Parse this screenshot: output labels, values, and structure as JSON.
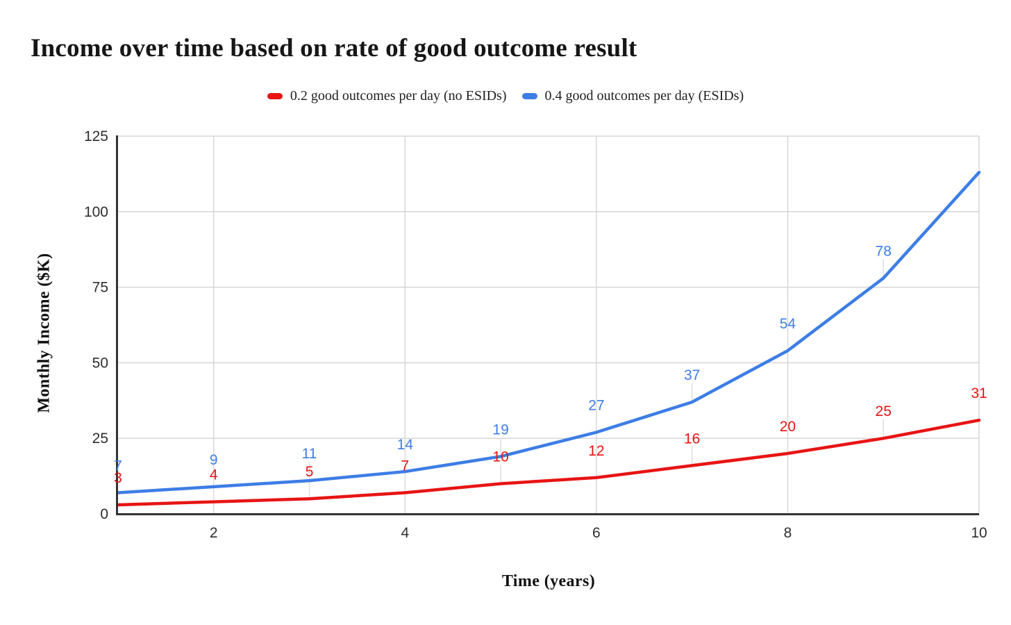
{
  "title": "Income over time based on rate of good outcome result",
  "legend": {
    "items": [
      {
        "label": "0.2 good outcomes per day (no ESIDs)",
        "color": "#e81414"
      },
      {
        "label": "0.4 good outcomes per day (ESIDs)",
        "color": "#3d7de6"
      }
    ]
  },
  "chart_data": {
    "type": "line",
    "title": "Income over time based on rate of good outcome result",
    "xlabel": "Time (years)",
    "ylabel": "Monthly Income ($K)",
    "x": [
      1,
      2,
      3,
      4,
      5,
      6,
      7,
      8,
      9,
      10
    ],
    "xticks": [
      2,
      4,
      6,
      8,
      10
    ],
    "yticks": [
      0,
      25,
      50,
      75,
      100,
      125
    ],
    "xlim": [
      1,
      10
    ],
    "ylim": [
      0,
      125
    ],
    "grid": true,
    "legend_position": "top-center",
    "series": [
      {
        "name": "0.2 good outcomes per day (no ESIDs)",
        "color": "#e81414",
        "values": [
          3,
          4,
          5,
          7,
          10,
          12,
          16,
          20,
          25,
          31
        ],
        "point_labels": [
          "3",
          "4",
          "5",
          "7",
          "10",
          "12",
          "16",
          "20",
          "25",
          "31"
        ]
      },
      {
        "name": "0.4 good outcomes per day (ESIDs)",
        "color": "#3d7de6",
        "values": [
          7,
          9,
          11,
          14,
          19,
          27,
          37,
          54,
          78,
          113
        ],
        "point_labels": [
          "7",
          "9",
          "11",
          "14",
          "19",
          "27",
          "37",
          "54",
          "78",
          ""
        ]
      }
    ],
    "styles": {
      "background": "#ffffff",
      "grid_color": "#d6d6d6",
      "axis_color": "#333333",
      "tick_label_color": "#2d2d2d",
      "leader_color": "#dedede"
    }
  }
}
